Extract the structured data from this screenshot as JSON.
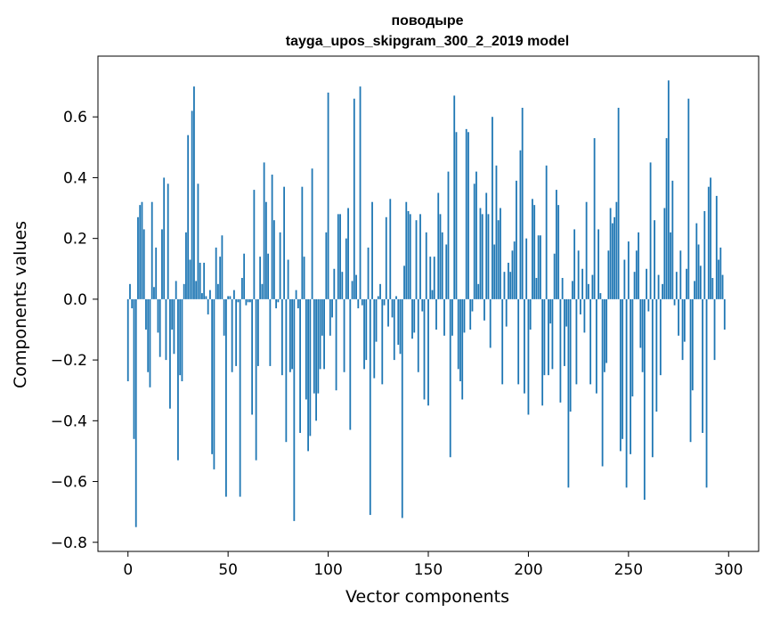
{
  "chart_data": {
    "type": "bar",
    "title": "поводыре",
    "subtitle": "tayga_upos_skipgram_300_2_2019 model",
    "xlabel": "Vector components",
    "ylabel": "Components values",
    "xlim": [
      -15,
      315
    ],
    "ylim": [
      -0.83,
      0.8
    ],
    "xticks": [
      0,
      50,
      100,
      150,
      200,
      250,
      300
    ],
    "xtick_labels": [
      "0",
      "50",
      "100",
      "150",
      "200",
      "250",
      "300"
    ],
    "yticks": [
      -0.8,
      -0.6,
      -0.4,
      -0.2,
      0.0,
      0.2,
      0.4,
      0.6
    ],
    "ytick_labels": [
      "−0.8",
      "−0.6",
      "−0.4",
      "−0.2",
      "0.0",
      "0.2",
      "0.4",
      "0.6"
    ],
    "bar_color": "#1f77b4",
    "grid": false,
    "x_start": 0,
    "values": [
      -0.27,
      0.05,
      -0.03,
      -0.46,
      -0.75,
      0.27,
      0.31,
      0.32,
      0.23,
      -0.1,
      -0.24,
      -0.29,
      0.32,
      0.04,
      0.17,
      -0.11,
      -0.19,
      0.23,
      0.4,
      -0.2,
      0.38,
      -0.36,
      -0.1,
      -0.18,
      0.06,
      -0.53,
      -0.25,
      -0.27,
      0.05,
      0.22,
      0.54,
      0.13,
      0.62,
      0.7,
      0.06,
      0.38,
      0.12,
      0.02,
      0.12,
      0.01,
      -0.05,
      0.03,
      -0.51,
      -0.56,
      0.17,
      0.05,
      0.14,
      0.21,
      -0.12,
      -0.65,
      0.01,
      0.01,
      -0.24,
      0.03,
      -0.22,
      -0.01,
      -0.65,
      0.07,
      0.15,
      -0.02,
      -0.01,
      -0.01,
      -0.38,
      0.36,
      -0.53,
      -0.22,
      0.14,
      0.05,
      0.45,
      0.32,
      0.15,
      -0.22,
      0.41,
      0.26,
      -0.03,
      -0.01,
      0.22,
      -0.25,
      0.37,
      -0.47,
      0.13,
      -0.24,
      -0.23,
      -0.73,
      0.03,
      -0.03,
      -0.44,
      0.37,
      0.14,
      -0.33,
      -0.5,
      -0.45,
      0.43,
      -0.31,
      -0.4,
      -0.31,
      -0.23,
      -0.12,
      -0.23,
      0.22,
      0.68,
      -0.12,
      -0.06,
      0.1,
      -0.3,
      0.28,
      0.28,
      0.09,
      -0.24,
      0.2,
      0.3,
      -0.43,
      0.06,
      0.66,
      0.08,
      -0.03,
      0.7,
      -0.02,
      -0.23,
      -0.2,
      0.17,
      -0.71,
      0.32,
      -0.26,
      -0.14,
      0.01,
      0.05,
      -0.28,
      -0.02,
      0.27,
      -0.09,
      0.33,
      -0.06,
      -0.2,
      0.01,
      -0.15,
      -0.18,
      -0.72,
      0.11,
      0.32,
      0.29,
      0.28,
      -0.13,
      -0.11,
      0.26,
      -0.24,
      0.28,
      -0.04,
      -0.33,
      0.22,
      -0.35,
      0.14,
      0.03,
      0.14,
      -0.1,
      0.35,
      0.28,
      0.22,
      -0.12,
      0.18,
      0.42,
      -0.52,
      -0.12,
      0.67,
      0.55,
      -0.23,
      -0.27,
      -0.33,
      -0.11,
      0.56,
      0.55,
      -0.1,
      -0.04,
      0.38,
      0.42,
      0.05,
      0.3,
      0.28,
      -0.07,
      0.35,
      0.28,
      -0.16,
      0.6,
      0.18,
      0.44,
      0.26,
      0.3,
      -0.28,
      0.09,
      -0.09,
      0.12,
      0.09,
      0.16,
      0.19,
      0.39,
      -0.28,
      0.49,
      0.63,
      -0.31,
      0.2,
      -0.38,
      -0.1,
      0.33,
      0.31,
      0.07,
      0.21,
      0.21,
      -0.35,
      -0.25,
      0.44,
      -0.25,
      -0.08,
      -0.23,
      0.15,
      0.36,
      0.31,
      -0.34,
      0.07,
      -0.22,
      -0.09,
      -0.62,
      -0.37,
      0.06,
      0.23,
      -0.28,
      0.16,
      -0.05,
      0.1,
      -0.11,
      0.32,
      0.05,
      -0.28,
      0.08,
      0.53,
      -0.31,
      0.23,
      0.02,
      -0.55,
      -0.24,
      -0.21,
      0.16,
      0.3,
      0.25,
      0.27,
      0.32,
      0.63,
      -0.5,
      -0.46,
      0.13,
      -0.62,
      0.19,
      -0.51,
      -0.32,
      0.09,
      0.16,
      0.22,
      -0.16,
      -0.24,
      -0.66,
      0.1,
      -0.04,
      0.45,
      -0.52,
      0.26,
      -0.37,
      0.08,
      -0.25,
      0.05,
      0.3,
      0.53,
      0.72,
      0.22,
      0.39,
      -0.02,
      0.09,
      -0.12,
      0.16,
      -0.2,
      -0.14,
      0.1,
      0.66,
      -0.47,
      -0.3,
      0.06,
      0.25,
      0.18,
      0.11,
      -0.44,
      0.29,
      -0.62,
      0.37,
      0.4,
      0.07,
      -0.2,
      0.34,
      0.13,
      0.17,
      0.08,
      -0.1
    ]
  }
}
